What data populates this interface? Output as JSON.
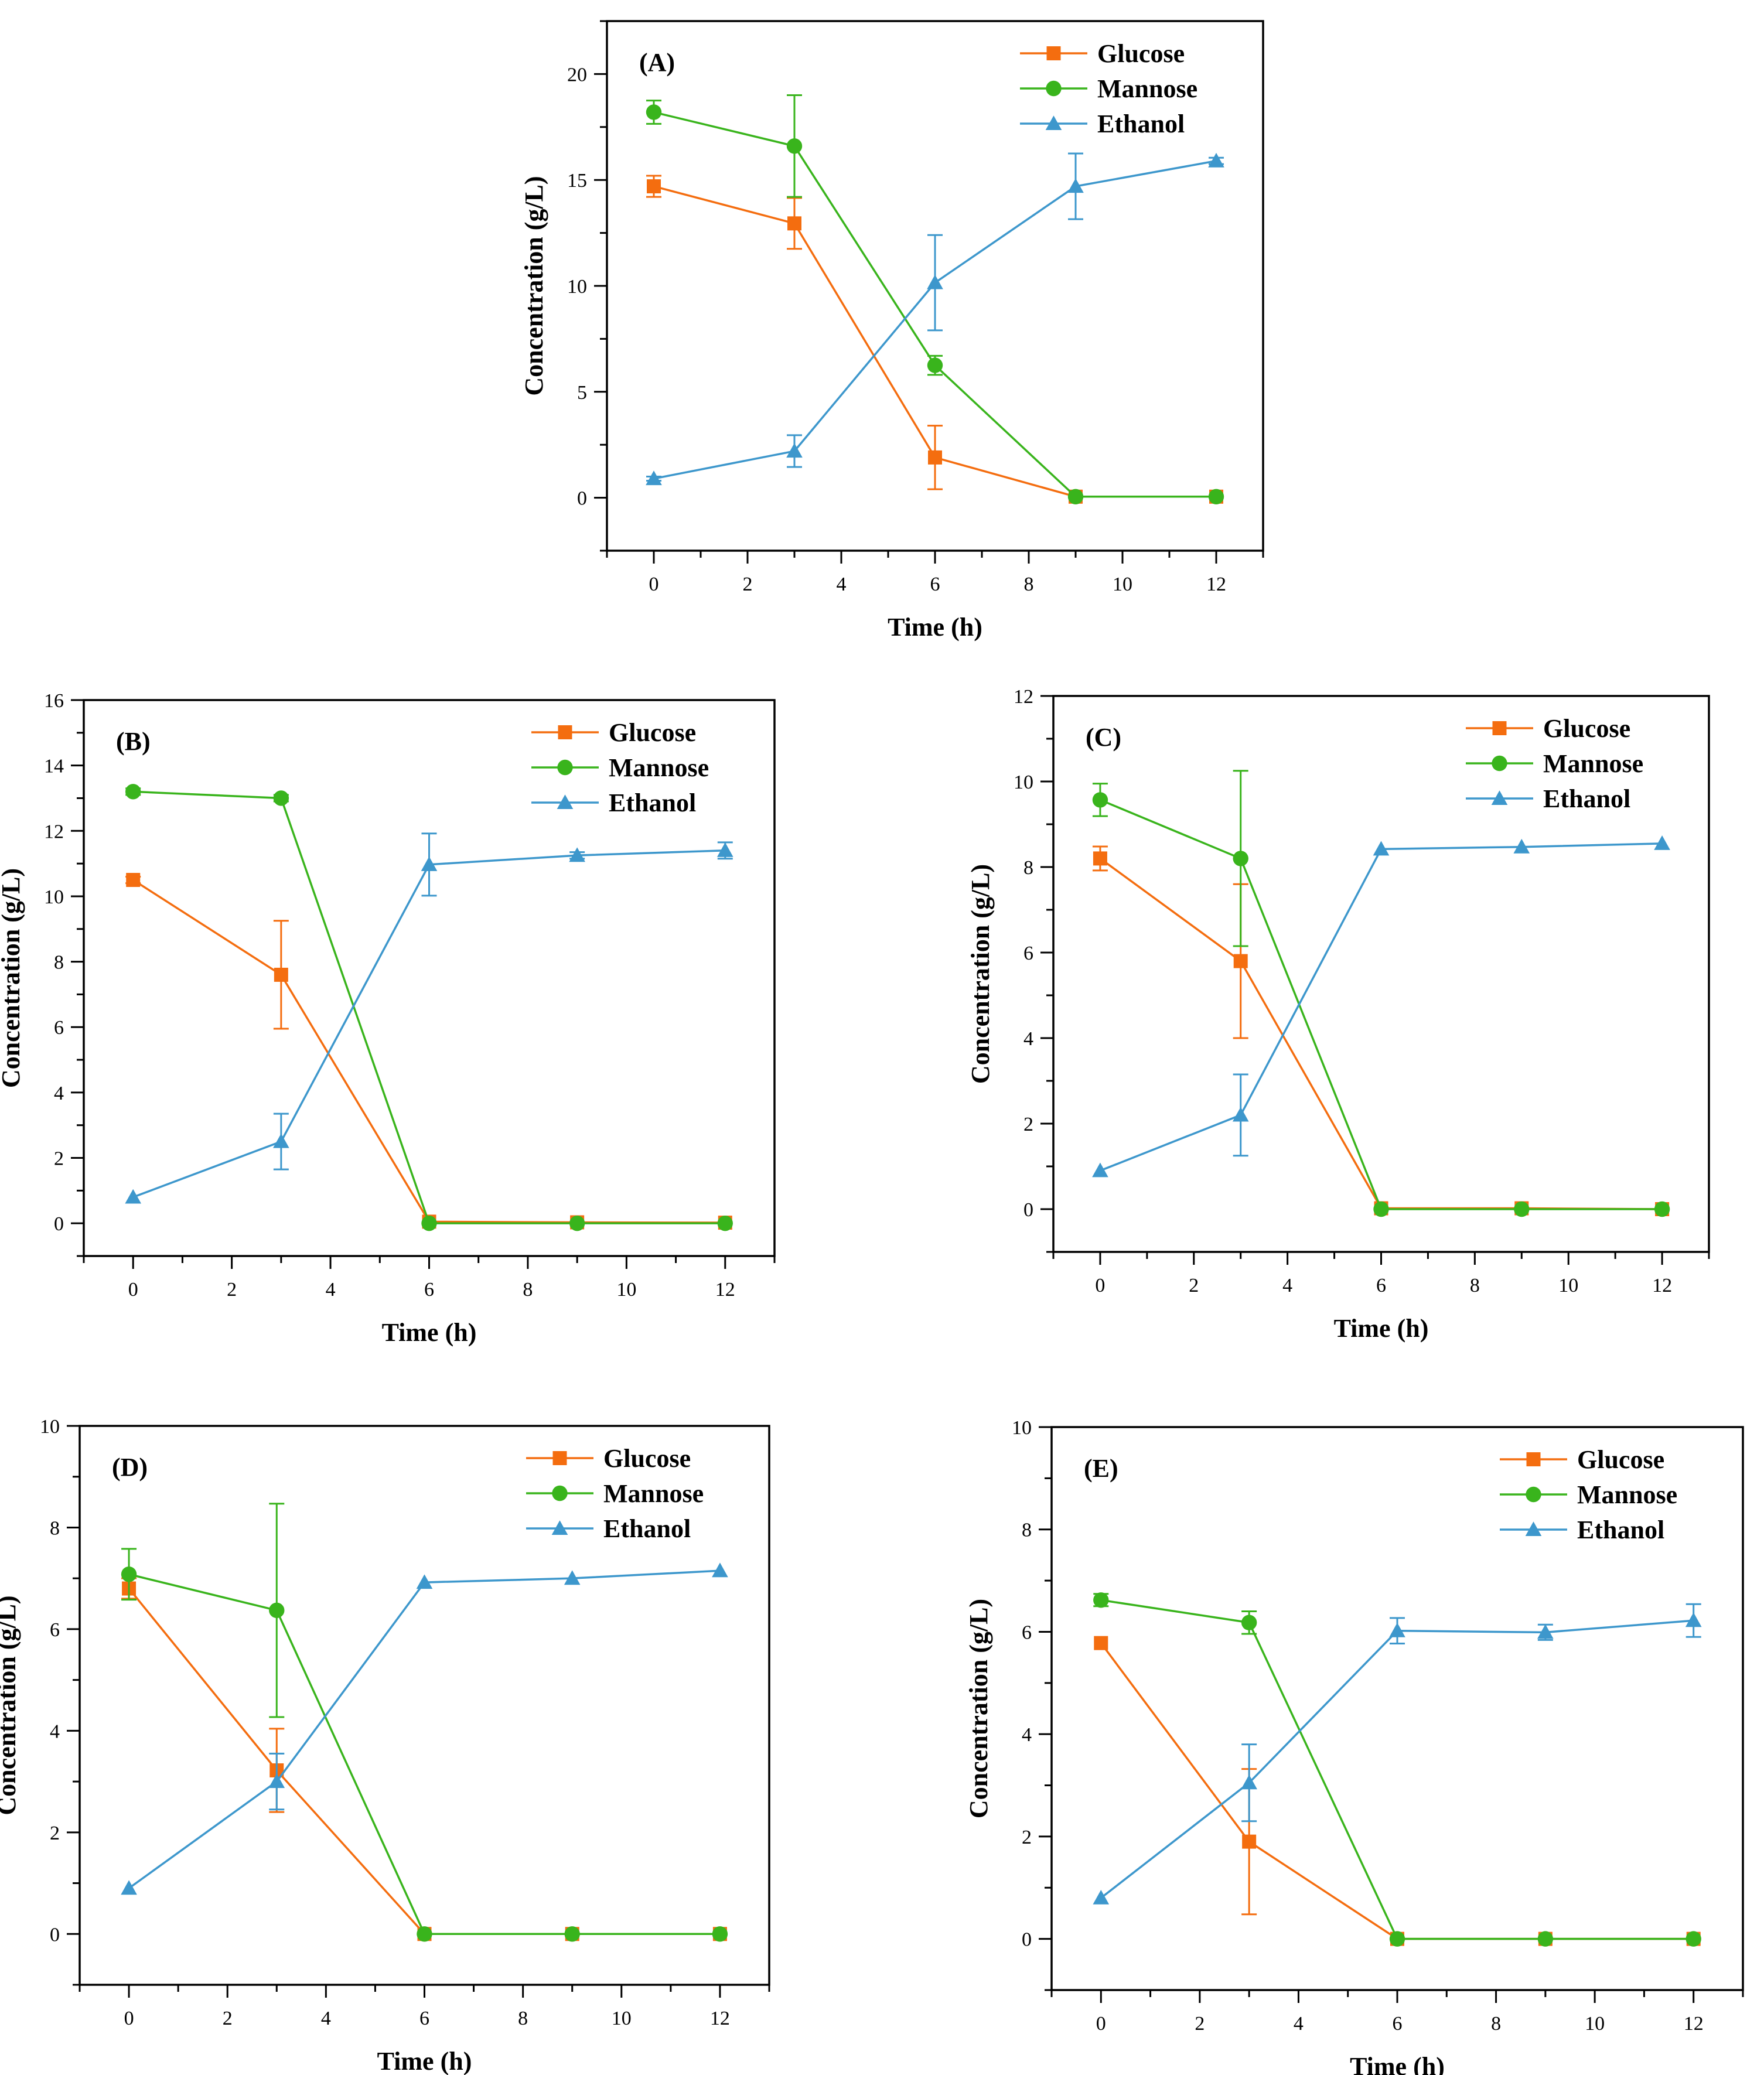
{
  "colors": {
    "Glucose": "#f46d0f",
    "Mannose": "#39b41c",
    "Ethanol": "#3d97cc"
  },
  "chart_data": [
    {
      "type": "line",
      "label": "(A)",
      "xlabel": "Time (h)",
      "ylabel": "Concentration (g/L)",
      "xlim": [
        -1,
        13
      ],
      "ylim": [
        -2.5,
        22.5
      ],
      "xticks": [
        0,
        2,
        4,
        6,
        8,
        10,
        12
      ],
      "yticks": [
        0,
        5,
        10,
        15,
        20
      ],
      "x": [
        0,
        3,
        6,
        9,
        12
      ],
      "legend": [
        "Glucose",
        "Mannose",
        "Ethanol"
      ],
      "series": [
        {
          "name": "Glucose",
          "marker": "square",
          "values": [
            14.7,
            12.95,
            1.9,
            0.05,
            0.05
          ],
          "errors": [
            0.5,
            1.2,
            1.5,
            0.05,
            0.05
          ]
        },
        {
          "name": "Mannose",
          "marker": "circle",
          "values": [
            18.2,
            16.6,
            6.25,
            0.05,
            0.05
          ],
          "errors": [
            0.55,
            2.4,
            0.45,
            0.05,
            0.05
          ]
        },
        {
          "name": "Ethanol",
          "marker": "triangle",
          "values": [
            0.9,
            2.2,
            10.15,
            14.7,
            15.9
          ],
          "errors": [
            0.1,
            0.75,
            2.25,
            1.55,
            0.15
          ]
        }
      ]
    },
    {
      "type": "line",
      "label": "(B)",
      "xlabel": "Time (h)",
      "ylabel": "Concentration (g/L)",
      "xlim": [
        -1,
        13
      ],
      "ylim": [
        -1,
        16
      ],
      "xticks": [
        0,
        2,
        4,
        6,
        8,
        10,
        12
      ],
      "yticks": [
        0,
        2,
        4,
        6,
        8,
        10,
        12,
        14,
        16
      ],
      "x": [
        0,
        3,
        6,
        9,
        12
      ],
      "legend": [
        "Glucose",
        "Mannose",
        "Ethanol"
      ],
      "series": [
        {
          "name": "Glucose",
          "marker": "square",
          "values": [
            10.5,
            7.6,
            0.05,
            0.03,
            0.02
          ],
          "errors": [
            0.1,
            1.65,
            0.05,
            0.03,
            0.02
          ]
        },
        {
          "name": "Mannose",
          "marker": "circle",
          "values": [
            13.2,
            13.0,
            0.0,
            0.0,
            0.0
          ],
          "errors": [
            0.1,
            0.1,
            0.0,
            0.0,
            0.0
          ]
        },
        {
          "name": "Ethanol",
          "marker": "triangle",
          "values": [
            0.8,
            2.5,
            10.97,
            11.25,
            11.4
          ],
          "errors": [
            0.05,
            0.85,
            0.95,
            0.1,
            0.25
          ]
        }
      ]
    },
    {
      "type": "line",
      "label": "(C)",
      "xlabel": "Time (h)",
      "ylabel": "Concentration (g/L)",
      "xlim": [
        -1,
        13
      ],
      "ylim": [
        -1,
        12
      ],
      "xticks": [
        0,
        2,
        4,
        6,
        8,
        10,
        12
      ],
      "yticks": [
        0,
        2,
        4,
        6,
        8,
        10,
        12
      ],
      "x": [
        0,
        3,
        6,
        9,
        12
      ],
      "legend": [
        "Glucose",
        "Mannose",
        "Ethanol"
      ],
      "series": [
        {
          "name": "Glucose",
          "marker": "square",
          "values": [
            8.2,
            5.8,
            0.02,
            0.02,
            0.0
          ],
          "errors": [
            0.28,
            1.8,
            0.02,
            0.02,
            0.0
          ]
        },
        {
          "name": "Mannose",
          "marker": "circle",
          "values": [
            9.57,
            8.2,
            0.0,
            0.0,
            0.0
          ],
          "errors": [
            0.38,
            2.05,
            0.0,
            0.0,
            0.0
          ]
        },
        {
          "name": "Ethanol",
          "marker": "triangle",
          "values": [
            0.9,
            2.2,
            8.42,
            8.47,
            8.55
          ],
          "errors": [
            0.08,
            0.95,
            0.04,
            0.04,
            0.05
          ]
        }
      ]
    },
    {
      "type": "line",
      "label": "(D)",
      "xlabel": "Time (h)",
      "ylabel": "Concentration (g/L)",
      "xlim": [
        -1,
        13
      ],
      "ylim": [
        -1,
        10
      ],
      "xticks": [
        0,
        2,
        4,
        6,
        8,
        10,
        12
      ],
      "yticks": [
        0,
        2,
        4,
        6,
        8,
        10
      ],
      "x": [
        0,
        3,
        6,
        9,
        12
      ],
      "legend": [
        "Glucose",
        "Mannose",
        "Ethanol"
      ],
      "series": [
        {
          "name": "Glucose",
          "marker": "square",
          "values": [
            6.8,
            3.22,
            0.0,
            0.0,
            0.0
          ],
          "errors": [
            0.2,
            0.82,
            0.0,
            0.0,
            0.0
          ]
        },
        {
          "name": "Mannose",
          "marker": "circle",
          "values": [
            7.08,
            6.37,
            0.0,
            0.0,
            0.0
          ],
          "errors": [
            0.5,
            2.1,
            0.0,
            0.0,
            0.0
          ]
        },
        {
          "name": "Ethanol",
          "marker": "triangle",
          "values": [
            0.9,
            3.0,
            6.92,
            7.0,
            7.15
          ],
          "errors": [
            0.04,
            0.55,
            0.06,
            0.05,
            0.06
          ]
        }
      ]
    },
    {
      "type": "line",
      "label": "(E)",
      "xlabel": "Time (h)",
      "ylabel": "Concentration (g/L)",
      "xlim": [
        -1,
        13
      ],
      "ylim": [
        -1,
        10
      ],
      "xticks": [
        0,
        2,
        4,
        6,
        8,
        10,
        12
      ],
      "yticks": [
        0,
        2,
        4,
        6,
        8,
        10
      ],
      "x": [
        0,
        3,
        6,
        9,
        12
      ],
      "legend": [
        "Glucose",
        "Mannose",
        "Ethanol"
      ],
      "series": [
        {
          "name": "Glucose",
          "marker": "square",
          "values": [
            5.78,
            1.9,
            0.0,
            0.0,
            0.0
          ],
          "errors": [
            0.06,
            1.42,
            0.0,
            0.0,
            0.0
          ]
        },
        {
          "name": "Mannose",
          "marker": "circle",
          "values": [
            6.62,
            6.18,
            0.0,
            0.0,
            0.0
          ],
          "errors": [
            0.12,
            0.22,
            0.0,
            0.0,
            0.0
          ]
        },
        {
          "name": "Ethanol",
          "marker": "triangle",
          "values": [
            0.8,
            3.05,
            6.02,
            5.99,
            6.22
          ],
          "errors": [
            0.05,
            0.75,
            0.25,
            0.15,
            0.32
          ]
        }
      ]
    }
  ]
}
